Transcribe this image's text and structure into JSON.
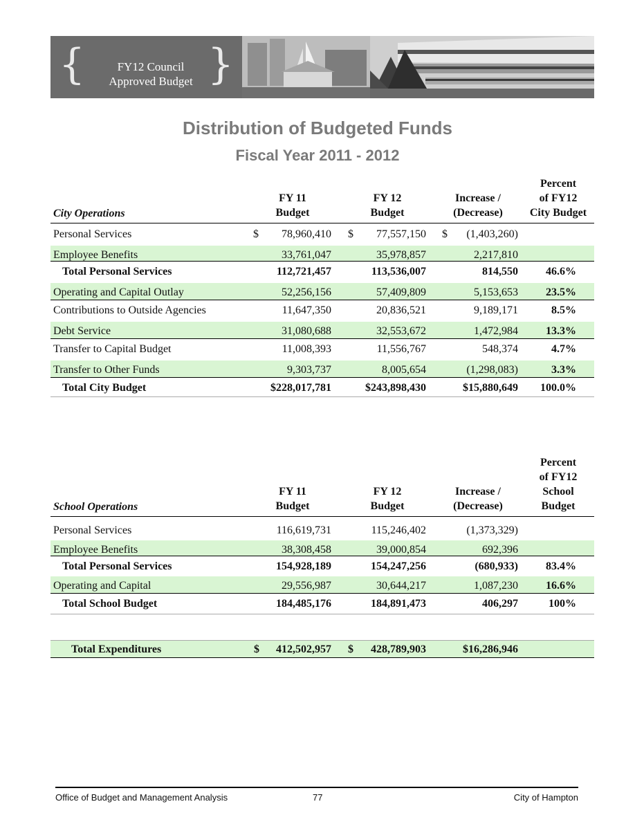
{
  "banner": {
    "line1": "FY12 Council",
    "line2": "Approved Budget"
  },
  "title": "Distribution of Budgeted Funds",
  "subtitle": "Fiscal Year 2011 - 2012",
  "city": {
    "caption": "City Operations",
    "headers": {
      "fy11": [
        "FY 11",
        "Budget"
      ],
      "fy12": [
        "FY 12",
        "Budget"
      ],
      "change": [
        "Increase /",
        "(Decrease)"
      ],
      "pct": [
        "Percent",
        "of FY12",
        "City Budget"
      ]
    },
    "rows": [
      {
        "label": "Personal Services",
        "d1": "$",
        "fy11": "78,960,410",
        "d2": "$",
        "fy12": "77,557,150",
        "d3": "$",
        "change": "(1,403,260)",
        "pct": "",
        "green": false,
        "total": false
      },
      {
        "label": "Employee Benefits",
        "d1": "",
        "fy11": "33,761,047",
        "d2": "",
        "fy12": "35,978,857",
        "d3": "",
        "change": "2,217,810",
        "pct": "",
        "green": true,
        "total": false
      },
      {
        "label": "Total Personal Services",
        "d1": "",
        "fy11": "112,721,457",
        "d2": "",
        "fy12": "113,536,007",
        "d3": "",
        "change": "814,550",
        "pct": "46.6%",
        "green": false,
        "total": true
      },
      {
        "label": "Operating and Capital Outlay",
        "d1": "",
        "fy11": "52,256,156",
        "d2": "",
        "fy12": "57,409,809",
        "d3": "",
        "change": "5,153,653",
        "pct": "23.5%",
        "green": true,
        "total": false
      },
      {
        "label": "Contributions to Outside Agencies",
        "d1": "",
        "fy11": "11,647,350",
        "d2": "",
        "fy12": "20,836,521",
        "d3": "",
        "change": "9,189,171",
        "pct": "8.5%",
        "green": false,
        "total": false
      },
      {
        "label": "Debt Service",
        "d1": "",
        "fy11": "31,080,688",
        "d2": "",
        "fy12": "32,553,672",
        "d3": "",
        "change": "1,472,984",
        "pct": "13.3%",
        "green": true,
        "total": false
      },
      {
        "label": "Transfer to Capital Budget",
        "d1": "",
        "fy11": "11,008,393",
        "d2": "",
        "fy12": "11,556,767",
        "d3": "",
        "change": "548,374",
        "pct": "4.7%",
        "green": false,
        "total": false
      },
      {
        "label": "Transfer to Other Funds",
        "d1": "",
        "fy11": "9,303,737",
        "d2": "",
        "fy12": "8,005,654",
        "d3": "",
        "change": "(1,298,083)",
        "pct": "3.3%",
        "green": true,
        "total": false
      },
      {
        "label": "Total City Budget",
        "d1": "",
        "fy11": "$228,017,781",
        "d2": "",
        "fy12": "$243,898,430",
        "d3": "",
        "change": "$15,880,649",
        "pct": "100.0%",
        "green": false,
        "total": true
      }
    ]
  },
  "school": {
    "caption": "School Operations",
    "headers": {
      "fy11": [
        "FY 11",
        "Budget"
      ],
      "fy12": [
        "FY 12",
        "Budget"
      ],
      "change": [
        "Increase /",
        "(Decrease)"
      ],
      "pct": [
        "Percent",
        "of FY12",
        "School",
        "Budget"
      ]
    },
    "rows": [
      {
        "label": "Personal Services",
        "d1": "",
        "fy11": "116,619,731",
        "d2": "",
        "fy12": "115,246,402",
        "d3": "",
        "change": "(1,373,329)",
        "pct": "",
        "green": false,
        "total": false
      },
      {
        "label": "Employee Benefits",
        "d1": "",
        "fy11": "38,308,458",
        "d2": "",
        "fy12": "39,000,854",
        "d3": "",
        "change": "692,396",
        "pct": "",
        "green": true,
        "total": false
      },
      {
        "label": "Total Personal Services",
        "d1": "",
        "fy11": "154,928,189",
        "d2": "",
        "fy12": "154,247,256",
        "d3": "",
        "change": "(680,933)",
        "pct": "83.4%",
        "green": false,
        "total": true
      },
      {
        "label": "Operating and Capital",
        "d1": "",
        "fy11": "29,556,987",
        "d2": "",
        "fy12": "30,644,217",
        "d3": "",
        "change": "1,087,230",
        "pct": "16.6%",
        "green": true,
        "total": false
      },
      {
        "label": "Total School Budget",
        "d1": "",
        "fy11": "184,485,176",
        "d2": "",
        "fy12": "184,891,473",
        "d3": "",
        "change": "406,297",
        "pct": "100%",
        "green": false,
        "total": true
      }
    ]
  },
  "grand_total": {
    "label": "Total Expenditures",
    "d1": "$",
    "fy11": "412,502,957",
    "d2": "$",
    "fy12": "428,789,903",
    "change": "$16,286,946"
  },
  "footer": {
    "left": "Office of Budget and Management Analysis",
    "page": "77",
    "right": "City of Hampton"
  }
}
